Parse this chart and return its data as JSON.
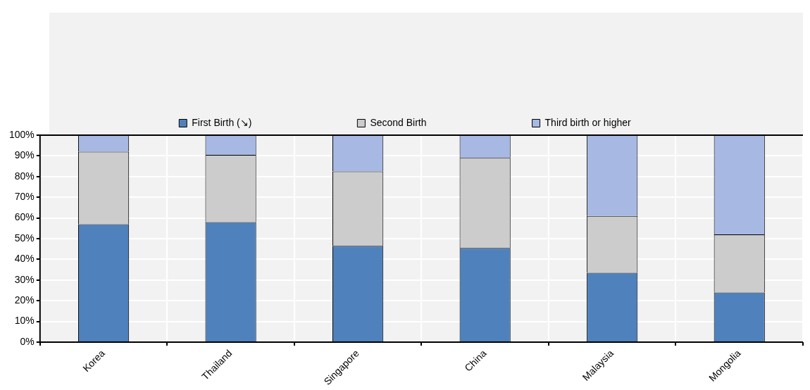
{
  "chart_data": {
    "type": "bar",
    "stacked": true,
    "categories": [
      "Korea",
      "Thailand",
      "Singapore",
      "China",
      "Malaysia",
      "Mongolia"
    ],
    "series": [
      {
        "name": "First Birth (↘)",
        "color": "#4f81bd",
        "values": [
          57,
          58,
          46.5,
          45.5,
          33.5,
          24
        ]
      },
      {
        "name": "Second Birth",
        "color": "#cccccc",
        "values": [
          35,
          32.5,
          36,
          43.5,
          27.5,
          28
        ]
      },
      {
        "name": "Third birth or higher",
        "color": "#a7b8e3",
        "values": [
          8,
          9.5,
          17.5,
          11,
          39,
          48
        ]
      }
    ],
    "ylim": [
      0,
      100
    ],
    "yticks": [
      {
        "value": 0,
        "label": "0%"
      },
      {
        "value": 10,
        "label": "10%"
      },
      {
        "value": 20,
        "label": "20%"
      },
      {
        "value": 30,
        "label": "30%"
      },
      {
        "value": 40,
        "label": "40%"
      },
      {
        "value": 50,
        "label": "50%"
      },
      {
        "value": 60,
        "label": "60%"
      },
      {
        "value": 70,
        "label": "70%"
      },
      {
        "value": 80,
        "label": "80%"
      },
      {
        "value": 90,
        "label": "90%"
      },
      {
        "value": 100,
        "label": "100%"
      }
    ],
    "grid": true,
    "legend": "top"
  }
}
